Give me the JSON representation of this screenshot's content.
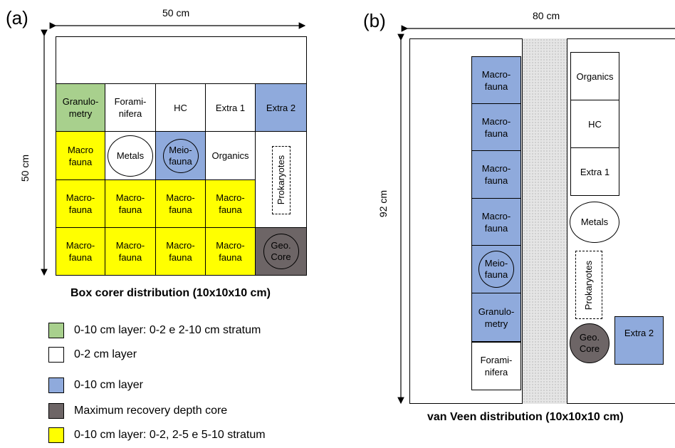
{
  "panel_a": {
    "letter": "(a)",
    "width_label": "50 cm",
    "height_label": "50 cm",
    "caption": "Box corer distribution (10x10x10 cm)",
    "row1": [
      "Granulo-\nmetry",
      "Forami-\nnifera",
      "HC",
      "Extra 1",
      "Extra 2"
    ],
    "row2": {
      "macro": "Macro\nfauna",
      "metals": "Metals",
      "meio": "Meio-\nfauna",
      "organics": "Organics",
      "prokaryotes": "Prokaryotes"
    },
    "row3": [
      "Macro-\nfauna",
      "Macro-\nfauna",
      "Macro-\nfauna",
      "Macro-\nfauna"
    ],
    "row4": [
      "Macro-\nfauna",
      "Macro-\nfauna",
      "Macro-\nfauna",
      "Macro-\nfauna"
    ],
    "geo_core": "Geo.\nCore"
  },
  "panel_b": {
    "letter": "(b)",
    "width_label": "80 cm",
    "height_label": "92 cm",
    "caption": "van Veen distribution (10x10x10 cm)",
    "left_column": [
      "Macro-\nfauna",
      "Macro-\nfauna",
      "Macro-\nfauna",
      "Macro-\nfauna"
    ],
    "meio": "Meio-\nfauna",
    "granulometry": "Granulo-\nmetry",
    "foraminifera": "Forami-\nnifera",
    "right_column": [
      "Organics",
      "HC",
      "Extra 1"
    ],
    "metals": "Metals",
    "prokaryotes": "Prokaryotes",
    "geo_core": "Geo.\nCore",
    "extra2": "Extra 2"
  },
  "legend": [
    {
      "color": "#a8d08d",
      "label": "0-10 cm layer: 0-2 e 2-10 cm stratum"
    },
    {
      "color": "#ffffff",
      "label": "0-2 cm layer"
    },
    {
      "color": "#8faadc",
      "label": "0-10 cm layer"
    },
    {
      "color": "#6d6566",
      "label": "Maximum recovery depth core"
    },
    {
      "color": "#ffff00",
      "label": "0-10 cm layer: 0-2, 2-5 e 5-10 stratum"
    }
  ]
}
